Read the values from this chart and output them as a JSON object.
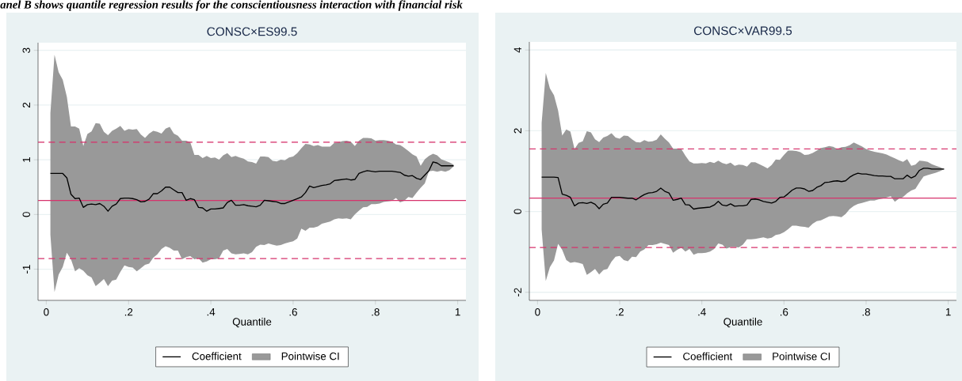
{
  "chart_data": [
    {
      "type": "line",
      "title": "CONSC×ES99.5",
      "xlabel": "Quantile",
      "annotations": [
        "anel B shows quantile regression results for the conscientiousness interaction with financial risk"
      ],
      "xlim": [
        -0.02,
        1.02
      ],
      "ylim": [
        -1.57,
        3.14
      ],
      "xticks": [
        0,
        {
          "value": 0.2,
          "label": ".2"
        },
        {
          "value": 0.4,
          "label": ".4"
        },
        {
          "value": 0.6,
          "label": ".6"
        },
        {
          "value": 0.8,
          "label": ".8"
        },
        1
      ],
      "yticks": [
        -1,
        0,
        1,
        2,
        3
      ],
      "grid": "y",
      "legend": "bottom",
      "ref_lines": [
        {
          "axis": "y",
          "value": 1.32,
          "color": "#d6336c",
          "line_style": "dashed"
        },
        {
          "axis": "y",
          "value": 0.256,
          "color": "#d6336c",
          "line_style": "solid"
        },
        {
          "axis": "y",
          "value": -0.807,
          "color": "#d6336c",
          "line_style": "dashed"
        }
      ],
      "series": [
        {
          "name": "Coefficient",
          "color": "#000000",
          "x": [
            0.01,
            0.02,
            0.03,
            0.04,
            0.05,
            0.06,
            0.07,
            0.08,
            0.09,
            0.1,
            0.11,
            0.12,
            0.13,
            0.14,
            0.15,
            0.16,
            0.17,
            0.18,
            0.19,
            0.2,
            0.21,
            0.22,
            0.23,
            0.24,
            0.25,
            0.26,
            0.27,
            0.28,
            0.29,
            0.3,
            0.31,
            0.32,
            0.33,
            0.34,
            0.35,
            0.36,
            0.37,
            0.38,
            0.39,
            0.4,
            0.41,
            0.42,
            0.43,
            0.44,
            0.45,
            0.46,
            0.47,
            0.48,
            0.49,
            0.5,
            0.51,
            0.52,
            0.53,
            0.54,
            0.55,
            0.56,
            0.57,
            0.58,
            0.59,
            0.6,
            0.61,
            0.62,
            0.63,
            0.64,
            0.65,
            0.66,
            0.67,
            0.68,
            0.69,
            0.7,
            0.71,
            0.72,
            0.73,
            0.74,
            0.75,
            0.76,
            0.77,
            0.78,
            0.79,
            0.8,
            0.81,
            0.82,
            0.83,
            0.84,
            0.85,
            0.86,
            0.87,
            0.88,
            0.89,
            0.9,
            0.91,
            0.92,
            0.93,
            0.94,
            0.95,
            0.96,
            0.97,
            0.98,
            0.99
          ],
          "values": [
            0.75,
            0.75,
            0.75,
            0.75,
            0.67,
            0.37,
            0.29,
            0.3,
            0.13,
            0.18,
            0.19,
            0.18,
            0.2,
            0.15,
            0.06,
            0.15,
            0.19,
            0.29,
            0.3,
            0.3,
            0.29,
            0.27,
            0.23,
            0.24,
            0.28,
            0.38,
            0.38,
            0.43,
            0.5,
            0.5,
            0.45,
            0.4,
            0.4,
            0.26,
            0.29,
            0.27,
            0.13,
            0.12,
            0.06,
            0.1,
            0.1,
            0.11,
            0.12,
            0.22,
            0.26,
            0.17,
            0.17,
            0.18,
            0.16,
            0.15,
            0.14,
            0.17,
            0.26,
            0.25,
            0.24,
            0.23,
            0.2,
            0.2,
            0.23,
            0.26,
            0.29,
            0.32,
            0.4,
            0.52,
            0.49,
            0.51,
            0.53,
            0.54,
            0.56,
            0.62,
            0.63,
            0.64,
            0.65,
            0.63,
            0.64,
            0.75,
            0.78,
            0.8,
            0.79,
            0.78,
            0.79,
            0.79,
            0.79,
            0.79,
            0.78,
            0.77,
            0.72,
            0.7,
            0.71,
            0.66,
            0.64,
            0.72,
            0.8,
            0.96,
            0.94,
            0.89,
            0.89,
            0.89,
            0.89
          ],
          "upper": [
            1.85,
            2.92,
            2.6,
            2.46,
            2.15,
            1.61,
            1.61,
            1.57,
            1.25,
            1.47,
            1.52,
            1.67,
            1.66,
            1.51,
            1.45,
            1.53,
            1.57,
            1.62,
            1.53,
            1.56,
            1.55,
            1.56,
            1.46,
            1.4,
            1.48,
            1.53,
            1.51,
            1.48,
            1.57,
            1.6,
            1.48,
            1.44,
            1.35,
            1.35,
            1.32,
            1.09,
            1.09,
            1.03,
            1.07,
            1.03,
            1.04,
            1.0,
            1.08,
            1.12,
            1.05,
            1.07,
            1.04,
            1.02,
            0.97,
            0.96,
            0.93,
            1.06,
            1.06,
            1.05,
            0.98,
            0.97,
            1.0,
            0.99,
            1.04,
            1.06,
            1.12,
            1.21,
            1.29,
            1.28,
            1.25,
            1.27,
            1.24,
            1.24,
            1.24,
            1.31,
            1.32,
            1.34,
            1.35,
            1.33,
            1.25,
            1.35,
            1.4,
            1.4,
            1.39,
            1.35,
            1.36,
            1.36,
            1.35,
            1.33,
            1.28,
            1.27,
            1.22,
            1.16,
            1.1,
            1.06,
            0.89,
            1.01,
            1.07,
            1.11,
            1.08,
            1.01,
            0.98,
            0.95,
            0.91
          ],
          "lower": [
            -0.37,
            -1.42,
            -1.1,
            -0.96,
            -0.7,
            -0.82,
            -1.04,
            -0.98,
            -1.03,
            -1.11,
            -1.15,
            -1.31,
            -1.25,
            -1.18,
            -1.31,
            -1.21,
            -1.19,
            -1.05,
            -0.93,
            -0.96,
            -0.97,
            -1.04,
            -0.98,
            -0.92,
            -0.9,
            -0.79,
            -0.73,
            -0.63,
            -0.58,
            -0.61,
            -0.66,
            -0.66,
            -0.82,
            -0.78,
            -0.76,
            -0.82,
            -0.8,
            -0.88,
            -0.86,
            -0.82,
            -0.82,
            -0.8,
            -0.66,
            -0.63,
            -0.71,
            -0.73,
            -0.72,
            -0.71,
            -0.73,
            -0.69,
            -0.59,
            -0.55,
            -0.56,
            -0.53,
            -0.55,
            -0.57,
            -0.56,
            -0.53,
            -0.51,
            -0.49,
            -0.44,
            -0.26,
            -0.3,
            -0.24,
            -0.24,
            -0.22,
            -0.17,
            -0.15,
            -0.13,
            -0.09,
            -0.07,
            -0.08,
            -0.07,
            -0.09,
            0.0,
            0.07,
            0.13,
            0.14,
            0.19,
            0.19,
            0.2,
            0.23,
            0.24,
            0.25,
            0.3,
            0.22,
            0.25,
            0.32,
            0.3,
            0.4,
            0.49,
            0.57,
            0.79,
            0.8,
            0.78,
            0.8,
            0.78,
            0.81,
            0.88
          ]
        },
        {
          "name": "Pointwise CI",
          "type": "area",
          "color": "#999999"
        }
      ]
    },
    {
      "type": "line",
      "title": "CONSC×VAR99.5",
      "xlabel": "Quantile",
      "xlim": [
        -0.02,
        1.02
      ],
      "ylim": [
        -2.2,
        4.2
      ],
      "xticks": [
        0,
        {
          "value": 0.2,
          "label": ".2"
        },
        {
          "value": 0.4,
          "label": ".4"
        },
        {
          "value": 0.6,
          "label": ".6"
        },
        {
          "value": 0.8,
          "label": ".8"
        },
        1
      ],
      "yticks": [
        -2,
        0,
        2,
        4
      ],
      "grid": "y",
      "legend": "bottom",
      "ref_lines": [
        {
          "axis": "y",
          "value": 1.55,
          "color": "#d6336c",
          "line_style": "dashed"
        },
        {
          "axis": "y",
          "value": 0.33,
          "color": "#d6336c",
          "line_style": "solid"
        },
        {
          "axis": "y",
          "value": -0.89,
          "color": "#d6336c",
          "line_style": "dashed"
        }
      ],
      "series": [
        {
          "name": "Coefficient",
          "color": "#000000",
          "x": [
            0.01,
            0.02,
            0.03,
            0.04,
            0.05,
            0.06,
            0.07,
            0.08,
            0.09,
            0.1,
            0.11,
            0.12,
            0.13,
            0.14,
            0.15,
            0.16,
            0.17,
            0.18,
            0.19,
            0.2,
            0.21,
            0.22,
            0.23,
            0.24,
            0.25,
            0.26,
            0.27,
            0.28,
            0.29,
            0.3,
            0.31,
            0.32,
            0.33,
            0.34,
            0.35,
            0.36,
            0.37,
            0.38,
            0.39,
            0.4,
            0.41,
            0.42,
            0.43,
            0.44,
            0.45,
            0.46,
            0.47,
            0.48,
            0.49,
            0.5,
            0.51,
            0.52,
            0.53,
            0.54,
            0.55,
            0.56,
            0.57,
            0.58,
            0.59,
            0.6,
            0.61,
            0.62,
            0.63,
            0.64,
            0.65,
            0.66,
            0.67,
            0.68,
            0.69,
            0.7,
            0.71,
            0.72,
            0.73,
            0.74,
            0.75,
            0.76,
            0.77,
            0.78,
            0.79,
            0.8,
            0.81,
            0.82,
            0.83,
            0.84,
            0.85,
            0.86,
            0.87,
            0.88,
            0.89,
            0.9,
            0.91,
            0.92,
            0.93,
            0.94,
            0.95,
            0.96,
            0.97,
            0.98,
            0.99
          ],
          "values": [
            0.85,
            0.85,
            0.85,
            0.85,
            0.84,
            0.43,
            0.4,
            0.35,
            0.14,
            0.21,
            0.22,
            0.2,
            0.23,
            0.18,
            0.07,
            0.18,
            0.21,
            0.35,
            0.35,
            0.35,
            0.34,
            0.33,
            0.33,
            0.29,
            0.36,
            0.42,
            0.46,
            0.47,
            0.5,
            0.58,
            0.5,
            0.46,
            0.28,
            0.3,
            0.33,
            0.17,
            0.16,
            0.06,
            0.08,
            0.09,
            0.1,
            0.11,
            0.16,
            0.25,
            0.16,
            0.14,
            0.19,
            0.13,
            0.14,
            0.14,
            0.16,
            0.3,
            0.31,
            0.29,
            0.25,
            0.23,
            0.21,
            0.25,
            0.35,
            0.36,
            0.44,
            0.53,
            0.58,
            0.58,
            0.56,
            0.5,
            0.52,
            0.6,
            0.64,
            0.72,
            0.73,
            0.75,
            0.76,
            0.74,
            0.76,
            0.85,
            0.91,
            0.95,
            0.93,
            0.93,
            0.91,
            0.89,
            0.88,
            0.88,
            0.87,
            0.87,
            0.81,
            0.81,
            0.81,
            0.9,
            0.83,
            0.88,
            1.02,
            1.07,
            1.07,
            1.05,
            1.05,
            1.05,
            1.05
          ],
          "upper": [
            2.2,
            3.43,
            3.05,
            2.88,
            2.5,
            1.88,
            2.03,
            1.98,
            1.55,
            1.7,
            1.74,
            1.99,
            1.96,
            1.79,
            1.72,
            1.83,
            1.87,
            1.94,
            1.83,
            1.8,
            1.88,
            1.87,
            1.79,
            1.72,
            1.71,
            1.77,
            1.73,
            1.74,
            1.78,
            1.91,
            1.8,
            1.71,
            1.56,
            1.56,
            1.55,
            1.38,
            1.24,
            1.19,
            1.19,
            1.2,
            1.19,
            1.23,
            1.2,
            1.26,
            1.2,
            1.17,
            1.21,
            1.13,
            1.16,
            1.15,
            1.11,
            1.22,
            1.22,
            1.17,
            1.12,
            1.07,
            1.15,
            1.29,
            1.28,
            1.4,
            1.51,
            1.51,
            1.5,
            1.47,
            1.4,
            1.41,
            1.45,
            1.51,
            1.57,
            1.59,
            1.62,
            1.6,
            1.55,
            1.59,
            1.6,
            1.64,
            1.71,
            1.66,
            1.61,
            1.55,
            1.51,
            1.48,
            1.46,
            1.44,
            1.41,
            1.36,
            1.32,
            1.27,
            1.23,
            1.3,
            1.13,
            1.16,
            1.26,
            1.25,
            1.23,
            1.17,
            1.13,
            1.1,
            1.05
          ],
          "lower": [
            -0.45,
            -1.72,
            -1.38,
            -1.21,
            -0.8,
            -0.95,
            -1.2,
            -1.27,
            -1.25,
            -1.27,
            -1.3,
            -1.57,
            -1.5,
            -1.42,
            -1.56,
            -1.45,
            -1.42,
            -1.24,
            -1.12,
            -1.1,
            -1.2,
            -1.23,
            -1.12,
            -1.13,
            -0.99,
            -0.94,
            -0.83,
            -0.83,
            -0.81,
            -0.77,
            -0.8,
            -0.83,
            -1.02,
            -0.95,
            -0.9,
            -0.99,
            -0.93,
            -1.07,
            -1.03,
            -1.03,
            -1.02,
            -0.99,
            -0.93,
            -0.79,
            -0.82,
            -0.92,
            -0.88,
            -0.88,
            -0.89,
            -0.82,
            -0.69,
            -0.69,
            -0.68,
            -0.66,
            -0.64,
            -0.67,
            -0.65,
            -0.58,
            -0.56,
            -0.51,
            -0.44,
            -0.35,
            -0.35,
            -0.37,
            -0.38,
            -0.4,
            -0.3,
            -0.24,
            -0.22,
            -0.17,
            -0.12,
            -0.11,
            -0.12,
            -0.14,
            -0.06,
            0.06,
            0.14,
            0.19,
            0.21,
            0.24,
            0.27,
            0.27,
            0.3,
            0.32,
            0.35,
            0.38,
            0.24,
            0.32,
            0.36,
            0.45,
            0.52,
            0.56,
            0.72,
            0.87,
            0.9,
            0.93,
            0.96,
            1.0,
            1.05
          ]
        },
        {
          "name": "Pointwise CI",
          "type": "area",
          "color": "#999999"
        }
      ]
    }
  ]
}
